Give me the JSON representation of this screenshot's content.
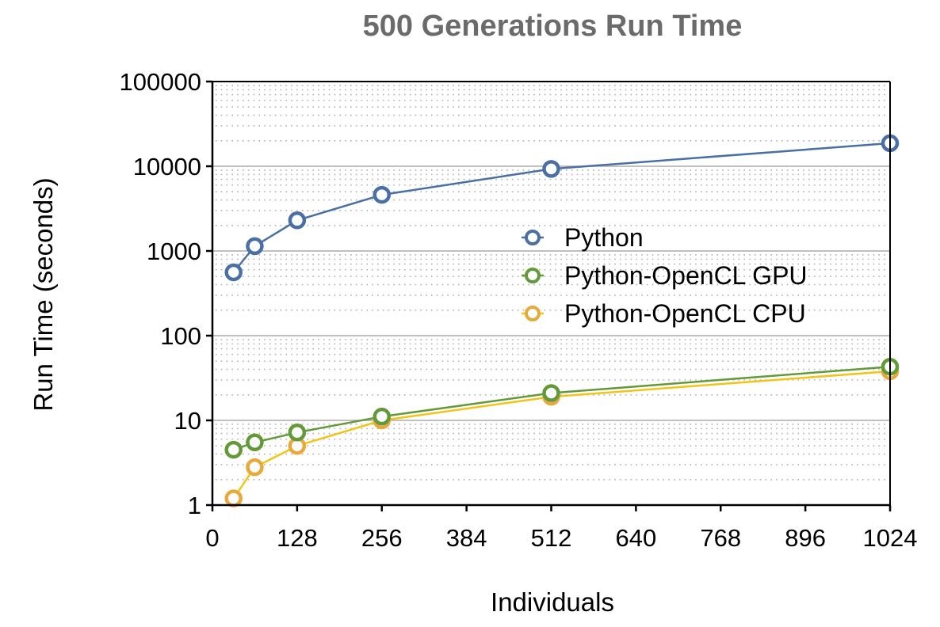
{
  "chart_data": {
    "type": "line",
    "title": "500 Generations Run Time",
    "xlabel": "Individuals",
    "ylabel": "Run Time (seconds)",
    "xlim": [
      0,
      1024
    ],
    "ylim": [
      1,
      100000
    ],
    "yscale": "log",
    "x_ticks": [
      "0",
      "128",
      "256",
      "384",
      "512",
      "640",
      "768",
      "896",
      "1024"
    ],
    "x_tick_values": [
      0,
      128,
      256,
      384,
      512,
      640,
      768,
      896,
      1024
    ],
    "y_ticks": [
      "1",
      "10",
      "100",
      "1000",
      "10000",
      "100000"
    ],
    "y_tick_values": [
      1,
      10,
      100,
      1000,
      10000,
      100000
    ],
    "grid": true,
    "legend_position": "center-right",
    "x": [
      32,
      64,
      128,
      256,
      512,
      1024
    ],
    "series": [
      {
        "name": "Python",
        "color": "#4a6fa5",
        "values": [
          560,
          1140,
          2300,
          4600,
          9300,
          18700
        ]
      },
      {
        "name": "Python-OpenCL GPU",
        "color": "#64993a",
        "values": [
          4.5,
          5.5,
          7.2,
          11.1,
          21,
          43
        ]
      },
      {
        "name": "Python-OpenCL CPU",
        "color": "#e8a93c",
        "line_color": "#f0c419",
        "values": [
          1.2,
          2.8,
          5.0,
          10,
          19,
          38
        ]
      }
    ]
  }
}
